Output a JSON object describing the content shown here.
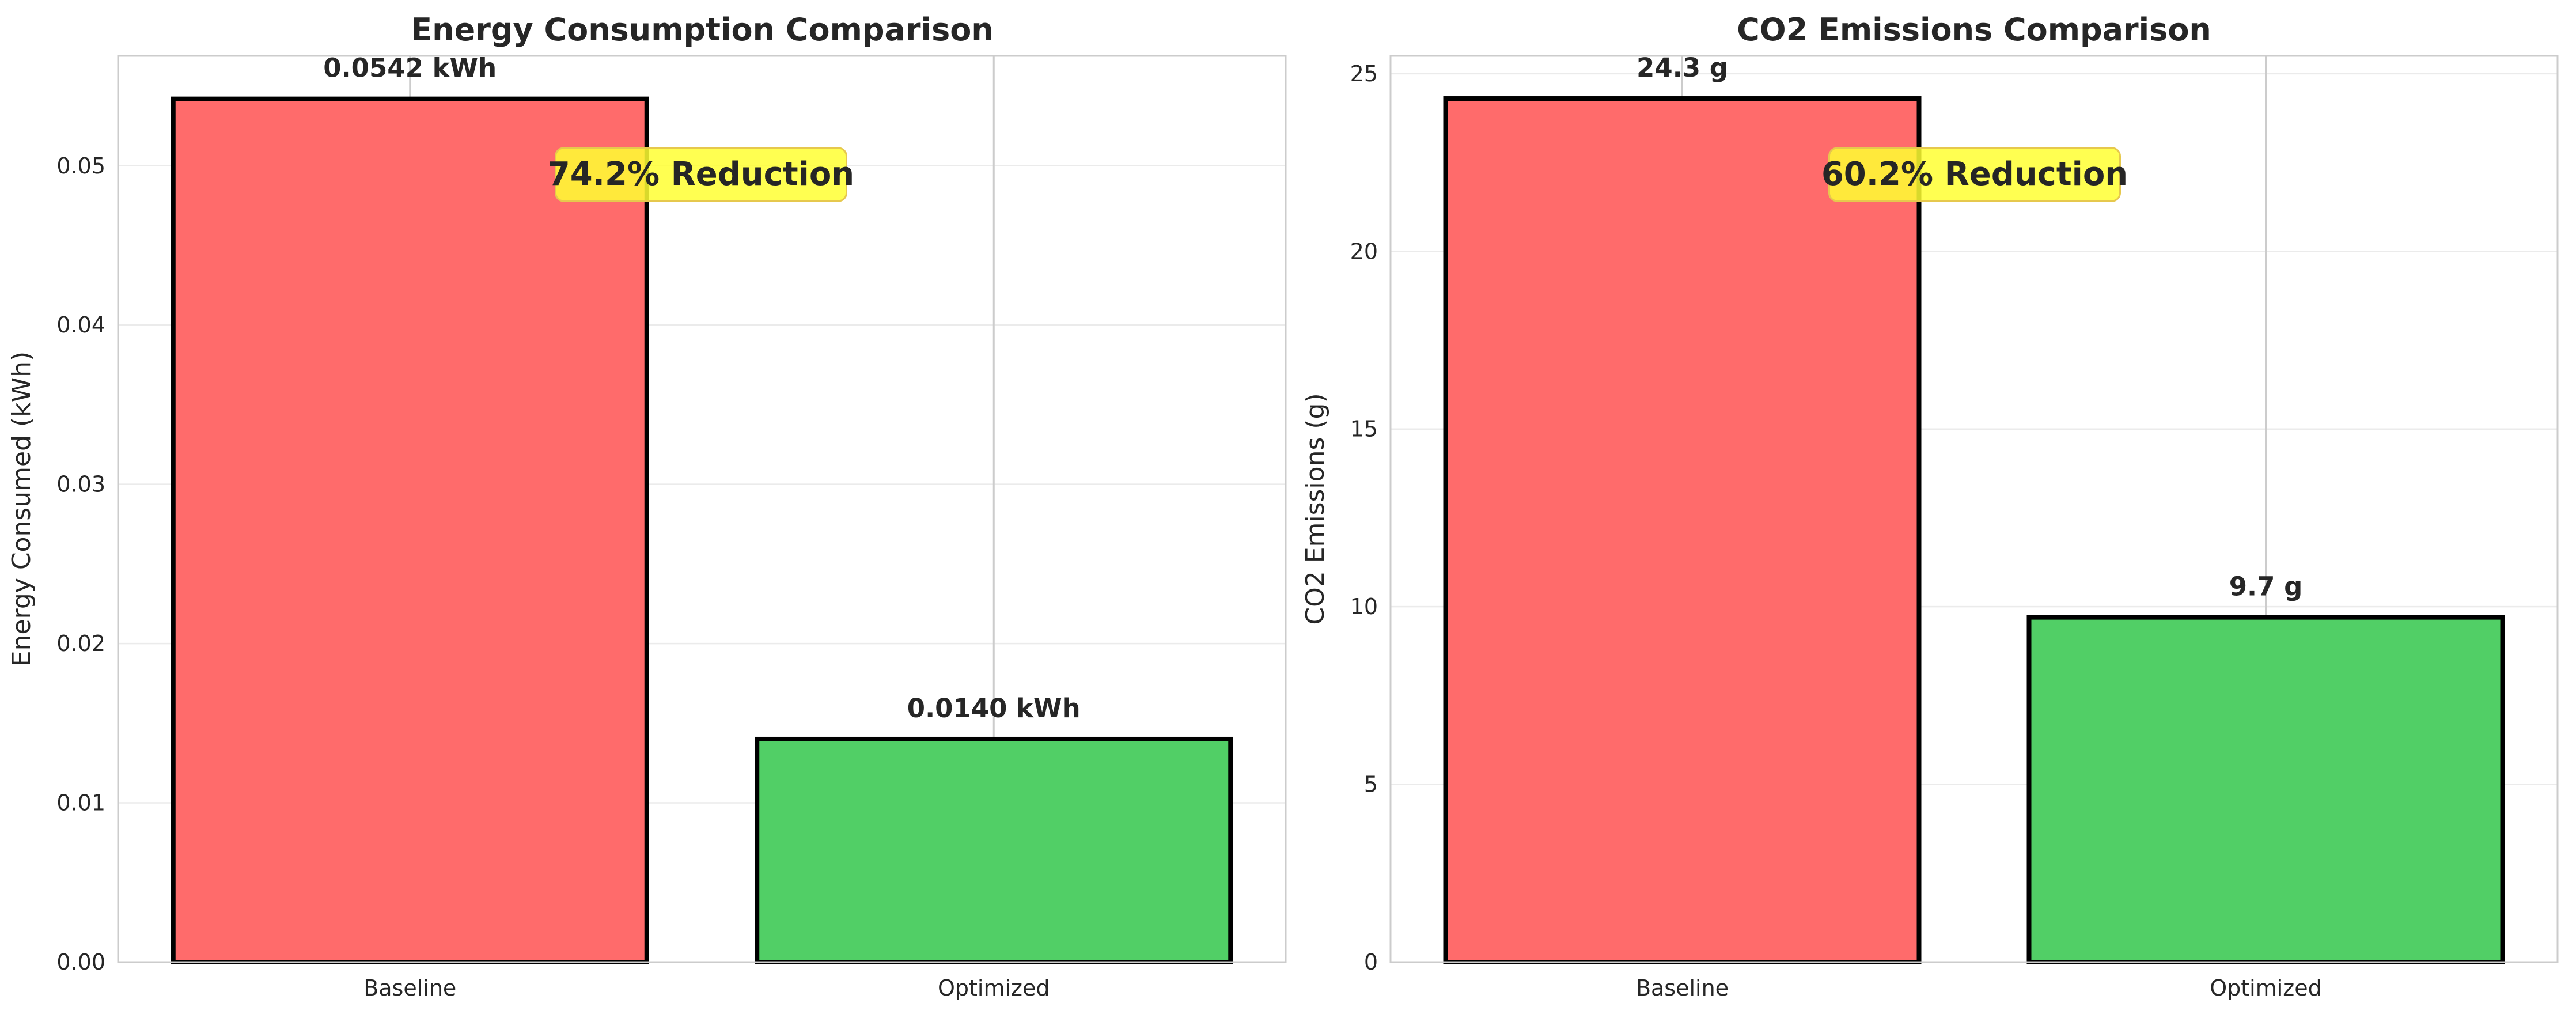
{
  "colors": {
    "baseline": "#ff6b6b",
    "optimized": "#51cf66",
    "annotation_bg": "#ffff33",
    "annotation_border": "#e6c84d",
    "text": "#262626",
    "grid": "#ebebeb",
    "spine": "#cccccc"
  },
  "chart_data": [
    {
      "type": "bar",
      "title": "Energy Consumption Comparison",
      "xlabel": "",
      "ylabel": "Energy Consumed (kWh)",
      "categories": [
        "Baseline",
        "Optimized"
      ],
      "values": [
        0.0542,
        0.014
      ],
      "bar_labels": [
        "0.0542 kWh",
        "0.0140 kWh"
      ],
      "ylim": [
        0,
        0.0569
      ],
      "yticks": [
        0,
        0.01,
        0.02,
        0.03,
        0.04,
        0.05
      ],
      "ytick_labels": [
        "0.00",
        "0.01",
        "0.02",
        "0.03",
        "0.04",
        "0.05"
      ],
      "annotation": "74.2% Reduction",
      "grid": true
    },
    {
      "type": "bar",
      "title": "CO2 Emissions Comparison",
      "xlabel": "",
      "ylabel": "CO2 Emissions (g)",
      "categories": [
        "Baseline",
        "Optimized"
      ],
      "values": [
        24.3,
        9.7
      ],
      "bar_labels": [
        "24.3 g",
        "9.7 g"
      ],
      "ylim": [
        0,
        25.5
      ],
      "yticks": [
        0,
        5,
        10,
        15,
        20,
        25
      ],
      "ytick_labels": [
        "0",
        "5",
        "10",
        "15",
        "20",
        "25"
      ],
      "annotation": "60.2% Reduction",
      "grid": true
    }
  ]
}
